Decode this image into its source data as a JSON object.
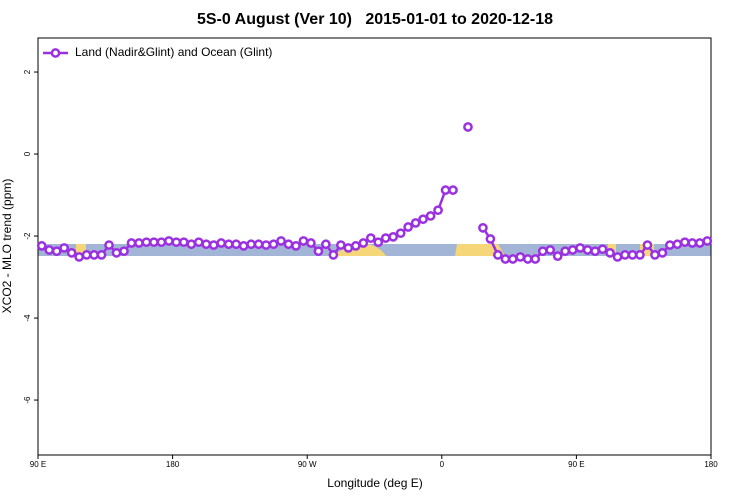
{
  "chart_data": {
    "type": "line",
    "title": "5S-0 August (Ver 10)   2015-01-01 to 2020-12-18",
    "xlabel": "Longitude (deg E)",
    "ylabel": "XCO2 - MLO trend (ppm)",
    "xlim": [
      90,
      540
    ],
    "ylim": [
      -7.34,
      2.83
    ],
    "xticks": [
      {
        "value": 90,
        "label": "90 E"
      },
      180,
      {
        "value": 270,
        "label": "90 W"
      },
      {
        "value": 360,
        "label": "0"
      },
      {
        "value": 450,
        "label": "90 E"
      },
      {
        "value": 540,
        "label": "180"
      }
    ],
    "yticks": [
      2,
      0,
      -2,
      -4,
      -6
    ],
    "grid": false,
    "legend": "top-left",
    "x": [
      92.5,
      97.5,
      102.5,
      107.5,
      112.5,
      117.5,
      122.5,
      127.5,
      132.5,
      137.5,
      142.5,
      147.5,
      152.5,
      157.5,
      162.5,
      167.5,
      172.5,
      177.5,
      182.5,
      187.5,
      192.5,
      197.5,
      202.5,
      207.5,
      212.5,
      217.5,
      222.5,
      227.5,
      232.5,
      237.5,
      242.5,
      247.5,
      252.5,
      257.5,
      262.5,
      267.5,
      272.5,
      277.5,
      282.5,
      287.5,
      292.5,
      297.5,
      302.5,
      307.5,
      312.5,
      317.5,
      322.5,
      327.5,
      332.5,
      337.5,
      342.5,
      347.5,
      352.5,
      357.5,
      362.5,
      367.5,
      372.5,
      377.5,
      382.5,
      387.5,
      392.5,
      397.5,
      402.5,
      407.5,
      412.5,
      417.5,
      422.5,
      427.5,
      432.5,
      437.5,
      442.5,
      447.5,
      452.5,
      457.5,
      462.5,
      467.5,
      472.5,
      477.5,
      482.5,
      487.5,
      492.5,
      497.5,
      502.5,
      507.5,
      512.5,
      517.5,
      522.5,
      527.5,
      532.5,
      537.5
    ],
    "series": [
      {
        "name": "Land (Nadir&Glint) and Ocean (Glint)",
        "color": "#9b30e0",
        "values": [
          -2.24,
          -2.34,
          -2.37,
          -2.29,
          -2.41,
          -2.51,
          -2.46,
          -2.46,
          -2.46,
          -2.22,
          -2.41,
          -2.37,
          -2.17,
          -2.17,
          -2.15,
          -2.15,
          -2.15,
          -2.12,
          -2.15,
          -2.15,
          -2.2,
          -2.15,
          -2.2,
          -2.22,
          -2.17,
          -2.2,
          -2.2,
          -2.24,
          -2.2,
          -2.2,
          -2.22,
          -2.2,
          -2.12,
          -2.2,
          -2.24,
          -2.12,
          -2.17,
          -2.37,
          -2.2,
          -2.46,
          -2.22,
          -2.29,
          -2.24,
          -2.17,
          -2.05,
          -2.15,
          -2.05,
          -2.02,
          -1.93,
          -1.78,
          -1.68,
          -1.59,
          -1.51,
          -1.37,
          -0.88,
          -0.88,
          null,
          0.66,
          null,
          -1.8,
          -2.07,
          -2.46,
          -2.56,
          -2.56,
          -2.51,
          -2.56,
          -2.56,
          -2.37,
          -2.34,
          -2.49,
          -2.37,
          -2.34,
          -2.29,
          -2.34,
          -2.37,
          -2.32,
          -2.41,
          -2.51,
          -2.46,
          -2.46,
          -2.46,
          -2.22,
          -2.46,
          -2.41,
          -2.22,
          -2.2,
          -2.15,
          -2.17,
          -2.17,
          -2.12
        ]
      }
    ]
  }
}
